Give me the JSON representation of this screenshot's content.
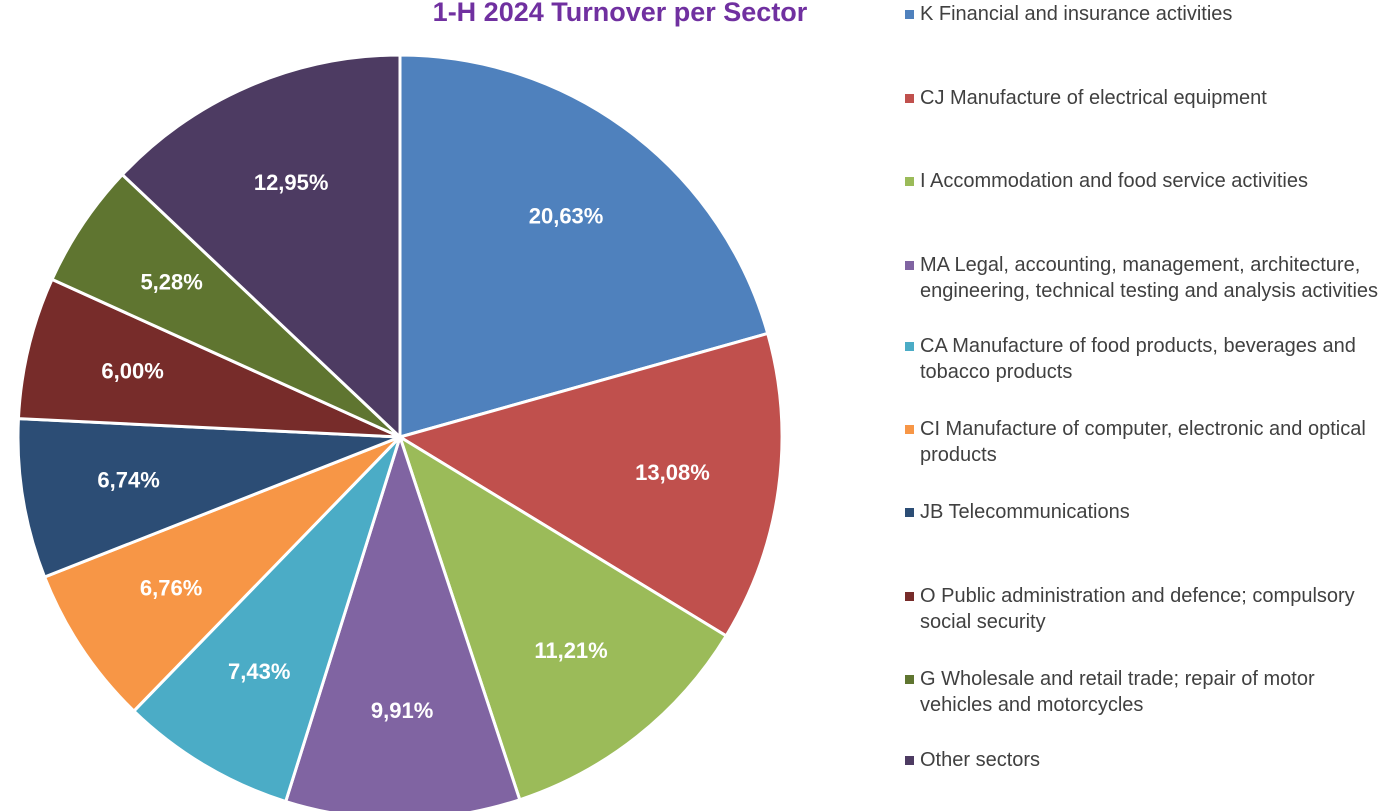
{
  "chart_data": {
    "type": "pie",
    "title": "1-H 2024 Turnover per Sector",
    "categories": [
      "K Financial and insurance activities",
      "CJ Manufacture of electrical equipment",
      "I Accommodation and food service activities",
      "MA Legal, accounting, management, architecture, engineering, technical testing and analysis activities",
      "CA Manufacture of food products, beverages and tobacco products",
      "CI Manufacture of computer, electronic and optical products",
      "JB Telecommunications",
      "O Public administration and defence; compulsory social security",
      "G Wholesale and retail trade; repair of motor vehicles and motorcycles",
      "Other sectors"
    ],
    "values": [
      20.63,
      13.08,
      11.21,
      9.91,
      7.43,
      6.76,
      6.74,
      6.0,
      5.28,
      12.95
    ],
    "value_labels": [
      "20,63%",
      "13,08%",
      "11,21%",
      "9,91%",
      "7,43%",
      "6,76%",
      "6,74%",
      "6,00%",
      "5,28%",
      "12,95%"
    ],
    "colors": [
      "#4f81bd",
      "#c0504d",
      "#9bbb59",
      "#8064a2",
      "#4bacc6",
      "#f79646",
      "#2c4d75",
      "#772c2a",
      "#5f7530",
      "#4d3b62"
    ],
    "legend": "right"
  }
}
